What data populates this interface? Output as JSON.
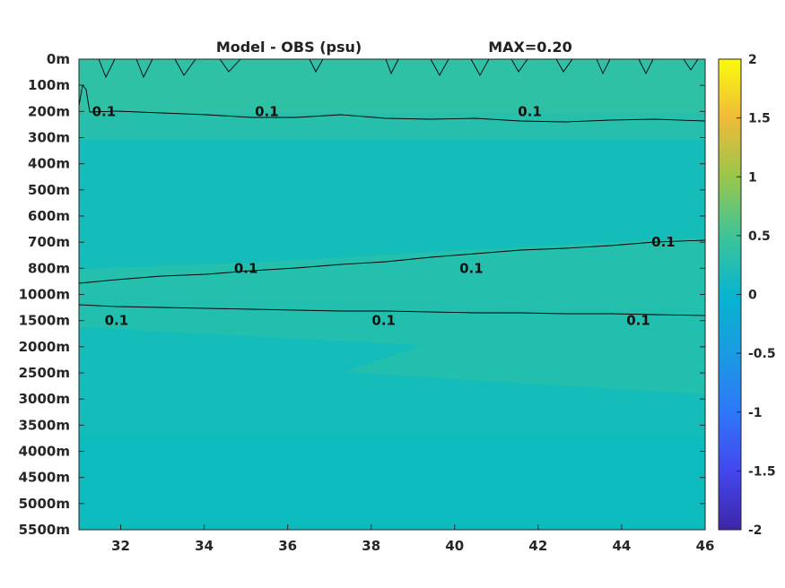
{
  "chart_data": {
    "type": "heatmap",
    "title": "Model - OBS (psu)",
    "subtitle": "MAX=0.20",
    "x": {
      "ticks": [
        32,
        34,
        36,
        38,
        40,
        42,
        44,
        46
      ],
      "range": [
        31,
        46
      ]
    },
    "y": {
      "labels": [
        "0m",
        "100m",
        "200m",
        "300m",
        "400m",
        "500m",
        "600m",
        "700m",
        "800m",
        "1000m",
        "1500m",
        "2000m",
        "2500m",
        "3000m",
        "3500m",
        "4000m",
        "4500m",
        "5000m",
        "5500m"
      ],
      "reversed": true
    },
    "colorbar": {
      "ticks": [
        "2",
        "1.5",
        "1",
        "0.5",
        "0",
        "-0.5",
        "-1",
        "-1.5",
        "-2"
      ],
      "range": [
        -2,
        2
      ],
      "colormap": "parula"
    },
    "contour_level": 0.1,
    "contour_labels": [
      {
        "text": "0.1",
        "x": 31.6,
        "depth": "200m"
      },
      {
        "text": "0.1",
        "x": 35.5,
        "depth": "200m"
      },
      {
        "text": "0.1",
        "x": 41.8,
        "depth": "200m"
      },
      {
        "text": "0.1",
        "x": 35.0,
        "depth": "800m"
      },
      {
        "text": "0.1",
        "x": 40.4,
        "depth": "800m"
      },
      {
        "text": "0.1",
        "x": 45.0,
        "depth": "700m"
      },
      {
        "text": "0.1",
        "x": 31.9,
        "depth": "1500m"
      },
      {
        "text": "0.1",
        "x": 38.3,
        "depth": "1500m"
      },
      {
        "text": "0.1",
        "x": 44.4,
        "depth": "1500m"
      }
    ]
  }
}
